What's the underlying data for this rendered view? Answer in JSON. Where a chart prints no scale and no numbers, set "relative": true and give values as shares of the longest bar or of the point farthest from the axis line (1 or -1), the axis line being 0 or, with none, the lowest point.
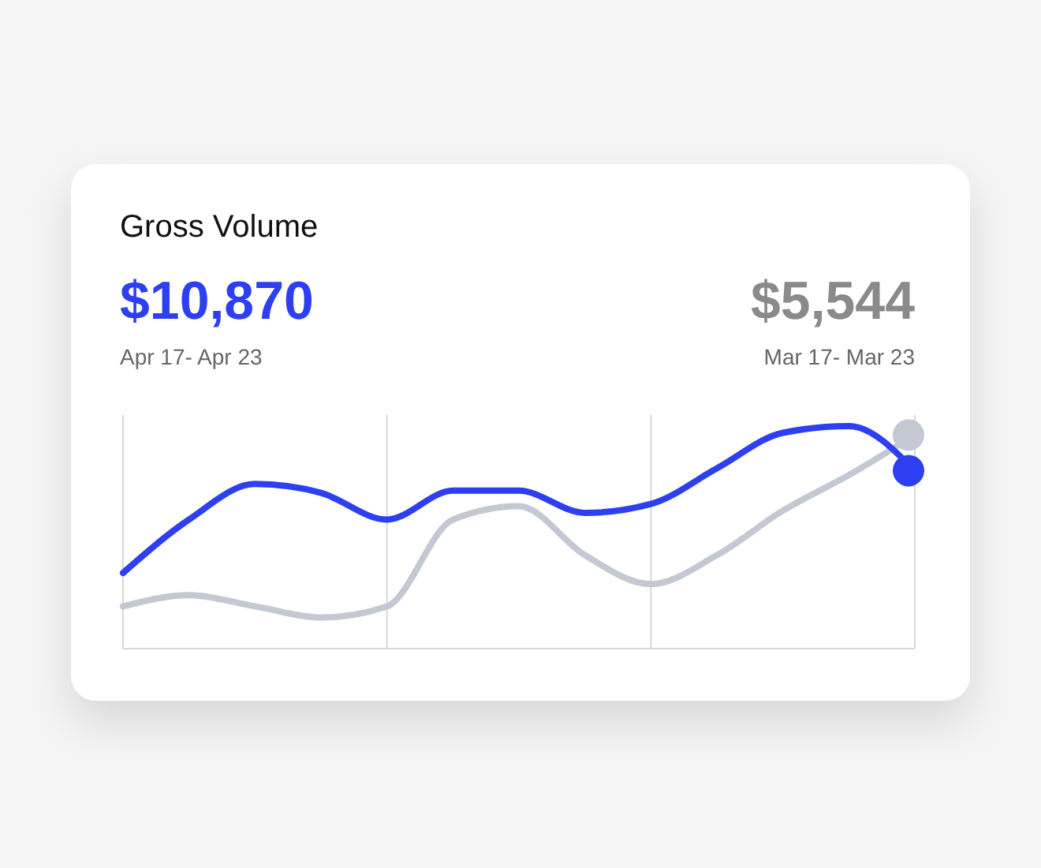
{
  "chart_data": {
    "type": "line",
    "title": "Gross Volume",
    "relative": true,
    "grid": "x",
    "annotations": [
      "$10,870",
      "$5,544",
      "Apr 17- Apr 23",
      "Mar 17- Mar 23"
    ],
    "categories": [
      null,
      null,
      null,
      null,
      null,
      null,
      null,
      null,
      null,
      null,
      null,
      null,
      null
    ],
    "series": [
      {
        "color": "#c3c8d2",
        "values": [
          0.19,
          0.24,
          0.19,
          0.14,
          0.19,
          0.58,
          0.64,
          0.42,
          0.29,
          0.42,
          0.62,
          0.78,
          0.96
        ]
      },
      {
        "color": "#2d3ff0",
        "values": [
          0.34,
          0.58,
          0.74,
          0.7,
          0.58,
          0.71,
          0.71,
          0.61,
          0.65,
          0.81,
          0.97,
          1.0,
          0.8
        ]
      }
    ]
  }
}
